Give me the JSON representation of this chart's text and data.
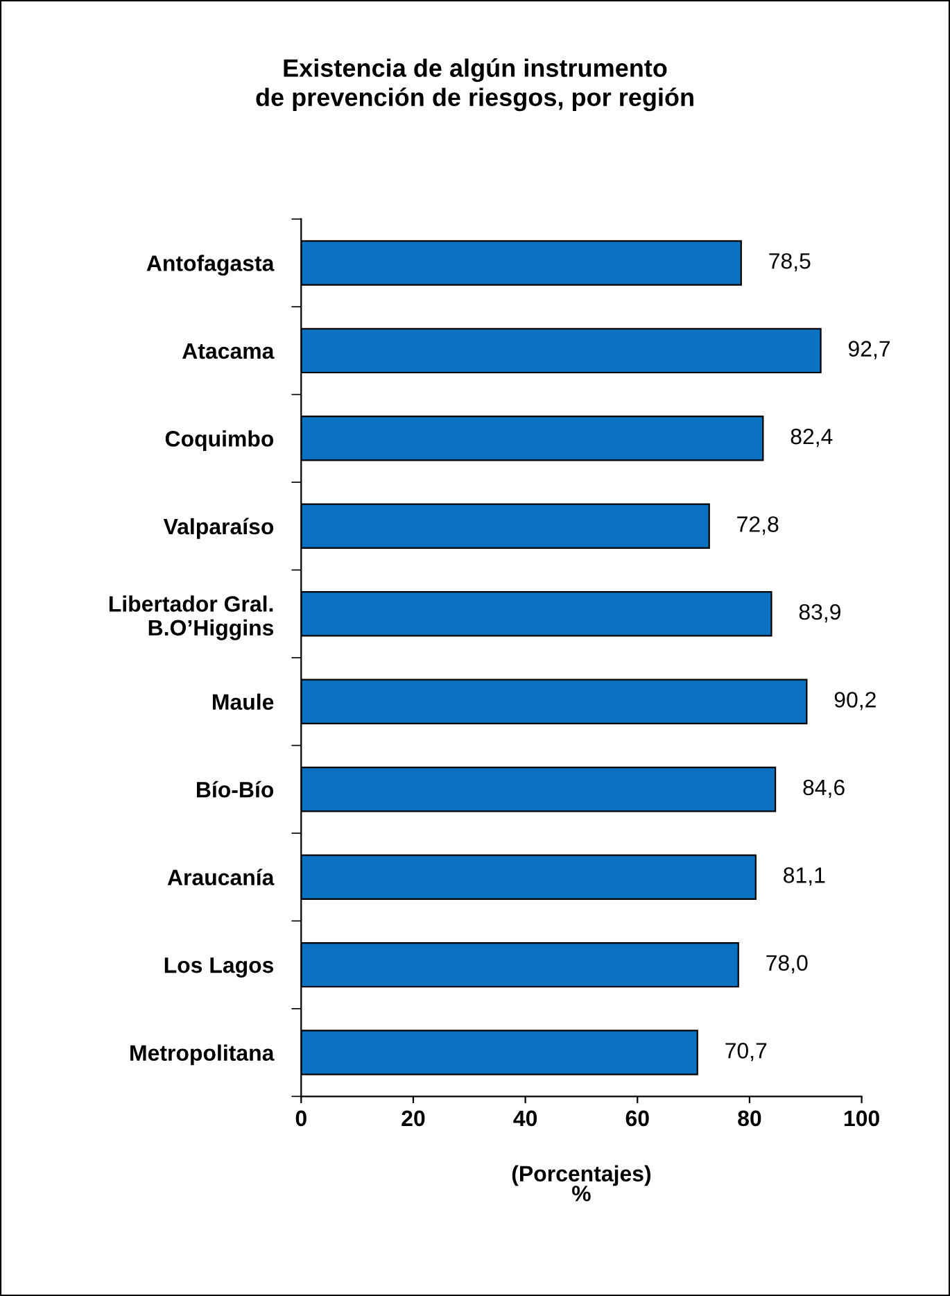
{
  "chart_data": {
    "type": "bar",
    "orientation": "horizontal",
    "title": "Existencia de algún instrumento\nde prevención de riesgos, por región",
    "xlabel": "(Porcentajes)\n%",
    "categories": [
      "Antofagasta",
      "Atacama",
      "Coquimbo",
      "Valparaíso",
      "Libertador Gral.\nB.O’Higgins",
      "Maule",
      "Bío-Bío",
      "Araucanía",
      "Los Lagos",
      "Metropolitana"
    ],
    "values": [
      78.5,
      92.7,
      82.4,
      72.8,
      83.9,
      90.2,
      84.6,
      81.1,
      78.0,
      70.7
    ],
    "value_labels": [
      "78,5",
      "92,7",
      "82,4",
      "72,8",
      "83,9",
      "90,2",
      "84,6",
      "81,1",
      "78,0",
      "70,7"
    ],
    "color": "#0a72c0",
    "xlim": [
      0,
      100
    ],
    "xticks": [
      0,
      20,
      40,
      60,
      80,
      100
    ],
    "grid": false,
    "legend": false
  }
}
